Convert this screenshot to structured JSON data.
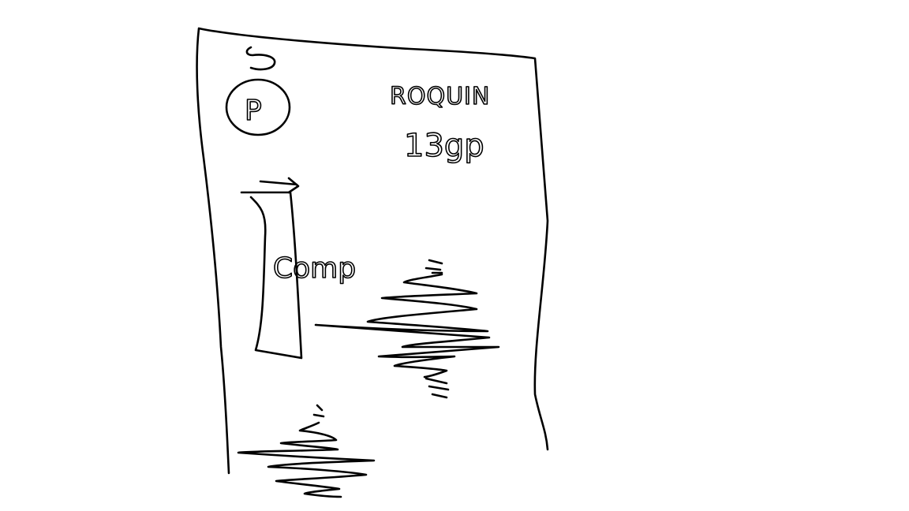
{
  "sketch": {
    "ink_color": "#000000",
    "background_color": "#ffffff",
    "texts": {
      "avatar_letter": "P",
      "name": "ROQUIN",
      "price": "13gp",
      "vertical_label": "Comp"
    }
  }
}
